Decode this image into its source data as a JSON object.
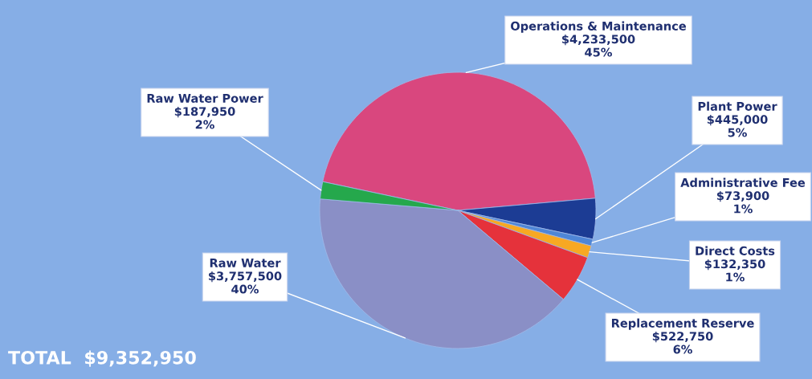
{
  "chart_data": {
    "type": "pie",
    "categories": [
      "Operations & Maintenance",
      "Plant Power",
      "Administrative Fee",
      "Direct Costs",
      "Replacement Reserve",
      "Raw Water",
      "Raw Water Power"
    ],
    "values": [
      4233500,
      445000,
      73900,
      132350,
      522750,
      3757500,
      187950
    ],
    "value_labels": [
      "$4,233,500\n45%",
      "$445,000\n5%",
      "$73,900\n1%",
      "$132,350\n1%",
      "$522,750\n6%",
      "$3,757,500\n40%",
      "$187,950\n2%"
    ],
    "colors": [
      "#d9477e",
      "#1c3c94",
      "#4f86d6",
      "#f7a823",
      "#e5323b",
      "#8a8fc6",
      "#25a84c"
    ],
    "annotations": [
      "TOTAL  $9,352,950"
    ],
    "legend": false
  }
}
